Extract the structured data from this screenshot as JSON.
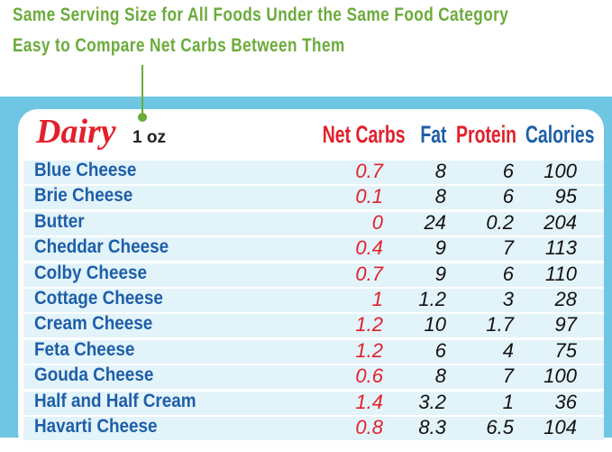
{
  "annotation": {
    "lines": [
      "Same Serving Size for All Foods Under the Same Food Category",
      "Easy to Compare Net Carbs Between Them"
    ]
  },
  "table": {
    "title": "Dairy",
    "serving": "1 oz",
    "columns": [
      "Net Carbs",
      "Fat",
      "Protein",
      "Calories"
    ],
    "rows": [
      [
        "Blue Cheese",
        0.7,
        8,
        6,
        100
      ],
      [
        "Brie Cheese",
        0.1,
        8,
        6,
        95
      ],
      [
        "Butter",
        0,
        24,
        0.2,
        204
      ],
      [
        "Cheddar Cheese",
        0.4,
        9,
        7,
        113
      ],
      [
        "Colby Cheese",
        0.7,
        9,
        6,
        110
      ],
      [
        "Cottage Cheese",
        1,
        1.2,
        3,
        28
      ],
      [
        "Cream Cheese",
        1.2,
        10,
        1.7,
        97
      ],
      [
        "Feta Cheese",
        1.2,
        6,
        4,
        75
      ],
      [
        "Gouda Cheese",
        0.6,
        8,
        7,
        100
      ],
      [
        "Half and Half Cream",
        1.4,
        3.2,
        1,
        36
      ],
      [
        "Havarti Cheese",
        0.8,
        8.3,
        6.5,
        104
      ]
    ]
  }
}
